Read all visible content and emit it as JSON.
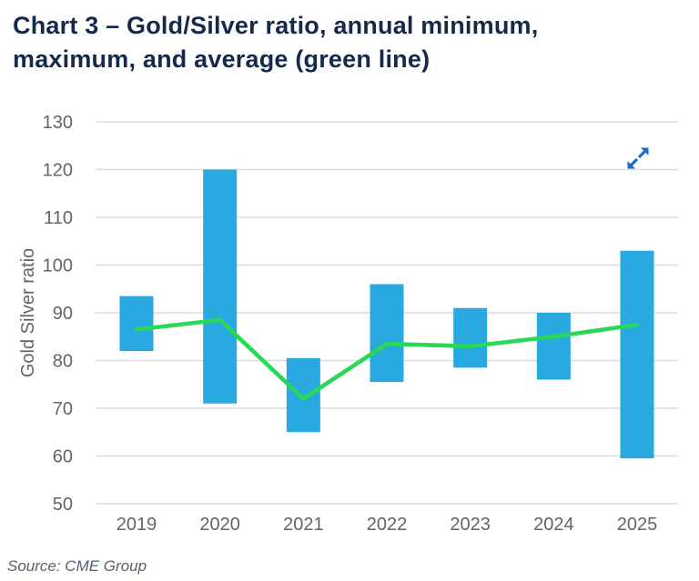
{
  "header": {
    "title_line1": "Chart 3 – Gold/Silver ratio, annual minimum,",
    "title_line2": "maximum, and average (green line)"
  },
  "controls": {
    "expand_icon": "expand-arrows-icon"
  },
  "footer": {
    "source": "Source: CME Group"
  },
  "colors": {
    "title": "#15294B",
    "bar": "#2AA9E0",
    "line": "#27D957",
    "axis_text": "#646464",
    "gridline": "#DCDCDC",
    "expand_icon": "#1B6EC5",
    "source_text": "#53626E"
  },
  "chart_data": {
    "type": "bar",
    "subtype": "min-max range bars with average line overlay",
    "title": "Chart 3 – Gold/Silver ratio, annual minimum, maximum, and average (green line)",
    "xlabel": "",
    "ylabel": "Gold Silver ratio",
    "ylim": [
      50,
      130
    ],
    "yticks": [
      50,
      60,
      70,
      80,
      90,
      100,
      110,
      120,
      130
    ],
    "grid": "horizontal",
    "legend": "none (average identified as green line in title)",
    "categories": [
      "2019",
      "2020",
      "2021",
      "2022",
      "2023",
      "2024",
      "2025"
    ],
    "series": [
      {
        "name": "annual minimum",
        "values": [
          82,
          71,
          65,
          75.5,
          78.5,
          76,
          59.5
        ]
      },
      {
        "name": "annual maximum",
        "values": [
          93.5,
          120,
          80.5,
          96,
          91,
          90,
          103
        ]
      },
      {
        "name": "average (green line)",
        "values": [
          86.5,
          88.5,
          72,
          83.5,
          83,
          85,
          87.5
        ]
      }
    ]
  }
}
